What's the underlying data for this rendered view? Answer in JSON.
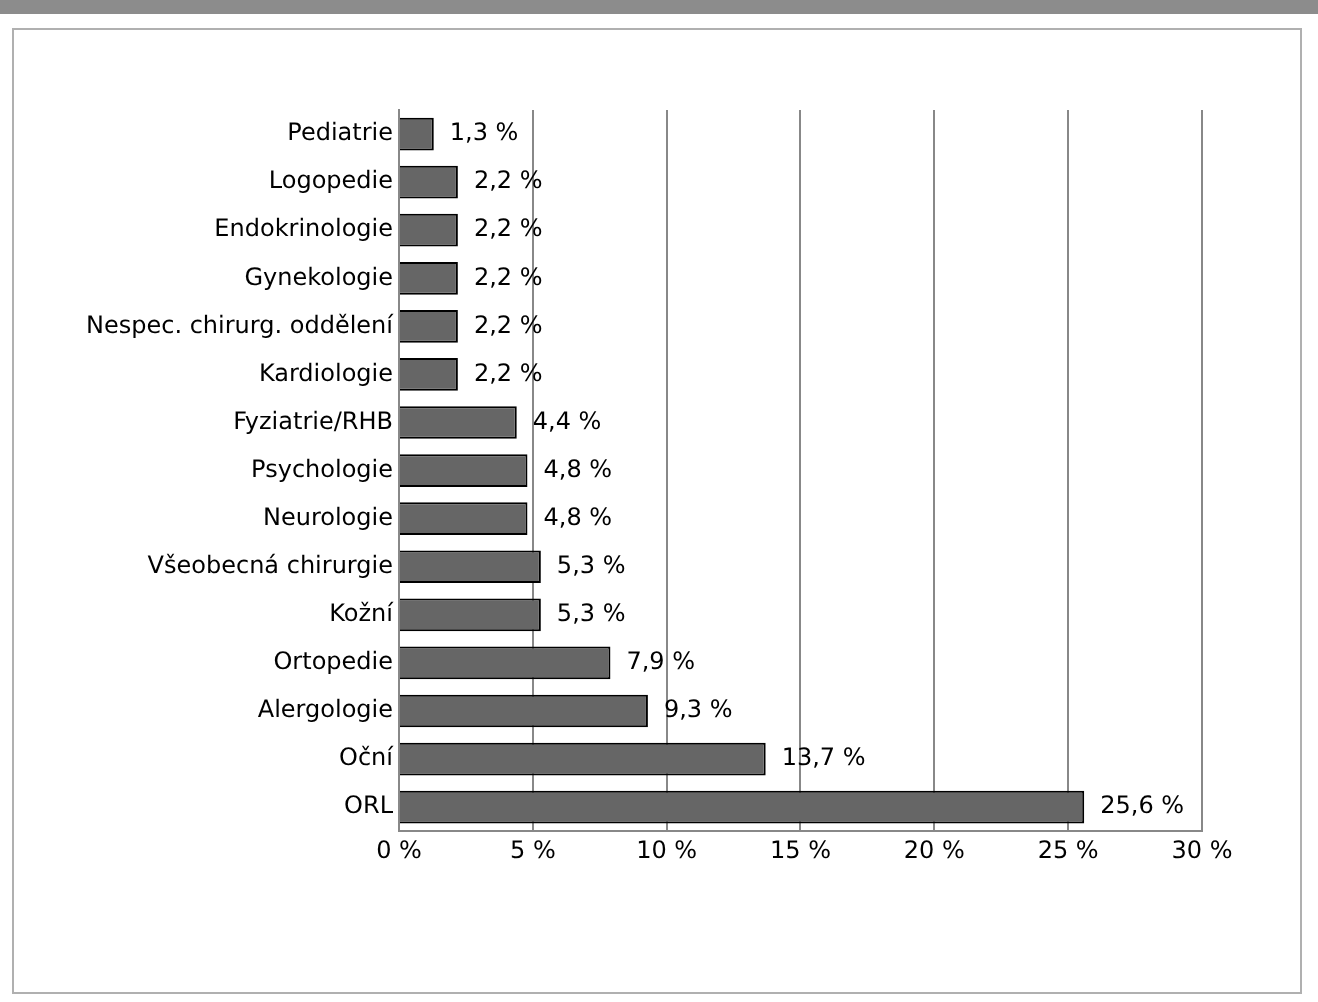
{
  "chart_data": {
    "type": "bar",
    "orientation": "horizontal",
    "categories": [
      "Pediatrie",
      "Logopedie",
      "Endokrinologie",
      "Gynekologie",
      "Nespec. chirurg. oddělení",
      "Kardiologie",
      "Fyziatrie/RHB",
      "Psychologie",
      "Neurologie",
      "Všeobecná chirurgie",
      "Kožní",
      "Ortopedie",
      "Alergologie",
      "Oční",
      "ORL"
    ],
    "values": [
      1.3,
      2.2,
      2.2,
      2.2,
      2.2,
      2.2,
      4.4,
      4.8,
      4.8,
      5.3,
      5.3,
      7.9,
      9.3,
      13.7,
      25.6
    ],
    "value_labels": [
      "1,3 %",
      "2,2 %",
      "2,2 %",
      "2,2 %",
      "2,2 %",
      "2,2 %",
      "4,4 %",
      "4,8 %",
      "4,8 %",
      "5,3 %",
      "5,3 %",
      "7,9 %",
      "9,3 %",
      "13,7 %",
      "25,6 %"
    ],
    "color": "#666666",
    "xlim": [
      0,
      30
    ],
    "xticks": [
      {
        "value": 0,
        "label": "0 %"
      },
      {
        "value": 5,
        "label": "5 %"
      },
      {
        "value": 10,
        "label": "10 %"
      },
      {
        "value": 15,
        "label": "15 %"
      },
      {
        "value": 20,
        "label": "20 %"
      },
      {
        "value": 25,
        "label": "25 %"
      },
      {
        "value": 30,
        "label": "30 %"
      }
    ],
    "grid": "x",
    "legend": false
  }
}
